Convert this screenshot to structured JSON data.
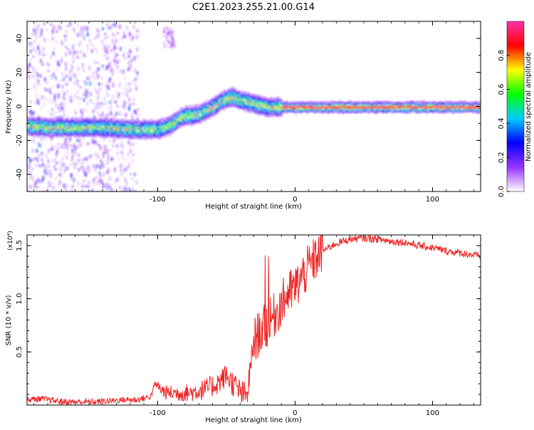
{
  "figure_title": "C2E1.2023.255.21.00.G14",
  "chart_data": [
    {
      "type": "heatmap",
      "title": "C2E1.2023.255.21.00.G14",
      "xlabel": "Height of straight line (km)",
      "ylabel": "Frequency (Hz)",
      "xlim": [
        -195,
        135
      ],
      "ylim": [
        -50,
        50
      ],
      "xticks": [
        -100,
        0,
        100
      ],
      "xtick_labels": [
        "-100",
        "0",
        "100"
      ],
      "yticks": [
        -40,
        -20,
        0,
        20,
        40
      ],
      "ytick_labels": [
        "-40",
        "-20",
        "0",
        "20",
        "40"
      ],
      "grid": false,
      "colorbar": {
        "label": "Normalized spectral amplitude",
        "range": [
          0,
          1
        ],
        "ticks": [
          0.0,
          0.2,
          0.4,
          0.6,
          0.8
        ],
        "tick_labels": [
          "0.0",
          "0.2",
          "0.4",
          "0.6",
          "0.8"
        ],
        "colormap": [
          "#ffffff",
          "#9933ff",
          "#0000ff",
          "#00ccff",
          "#00ff00",
          "#ffff00",
          "#ff0000",
          "#ff33aa"
        ]
      },
      "ridge": {
        "x": [
          -195,
          -180,
          -160,
          -140,
          -120,
          -110,
          -100,
          -95,
          -90,
          -85,
          -80,
          -75,
          -70,
          -65,
          -60,
          -55,
          -50,
          -45,
          -40,
          -35,
          -30,
          -25,
          -20,
          -15,
          -10,
          -5,
          0,
          10,
          20,
          40,
          60,
          80,
          100,
          120,
          135
        ],
        "y": [
          -11,
          -12,
          -12,
          -12,
          -13,
          -13,
          -13,
          -12,
          -10,
          -7,
          -5,
          -5,
          -4,
          -2,
          0,
          3,
          5,
          6,
          4,
          3,
          2,
          1,
          0,
          0,
          0,
          0,
          0,
          0,
          0,
          0,
          0,
          0,
          0,
          0,
          0
        ]
      }
    },
    {
      "type": "line",
      "xlabel": "Height of straight line (km)",
      "ylabel": "SNR (10 * v/v)",
      "y_multiplier_label": "(x10⁴)",
      "xlim": [
        -195,
        135
      ],
      "ylim": [
        0,
        1.6
      ],
      "xticks": [
        -100,
        0,
        100
      ],
      "xtick_labels": [
        "-100",
        "0",
        "100"
      ],
      "yticks": [
        0.5,
        1.0,
        1.5
      ],
      "ytick_labels": [
        "0.5",
        "1.0",
        "1.5"
      ],
      "grid": false,
      "series": [
        {
          "color": "#ee2222",
          "x": [
            -195,
            -185,
            -175,
            -165,
            -155,
            -145,
            -135,
            -125,
            -115,
            -105,
            -102,
            -95,
            -85,
            -75,
            -65,
            -60,
            -55,
            -50,
            -45,
            -40,
            -35,
            -30,
            -25,
            -20,
            -15,
            -10,
            -5,
            0,
            5,
            10,
            15,
            20,
            30,
            40,
            50,
            60,
            70,
            80,
            90,
            100,
            110,
            120,
            130,
            135
          ],
          "y": [
            0.05,
            0.06,
            0.04,
            0.03,
            0.03,
            0.03,
            0.04,
            0.05,
            0.05,
            0.08,
            0.2,
            0.12,
            0.11,
            0.12,
            0.15,
            0.18,
            0.22,
            0.28,
            0.2,
            0.12,
            0.08,
            0.6,
            0.7,
            0.75,
            0.85,
            0.95,
            1.05,
            1.1,
            1.2,
            1.3,
            1.38,
            1.45,
            1.52,
            1.56,
            1.57,
            1.56,
            1.54,
            1.53,
            1.5,
            1.48,
            1.45,
            1.43,
            1.41,
            1.4
          ]
        }
      ]
    }
  ]
}
